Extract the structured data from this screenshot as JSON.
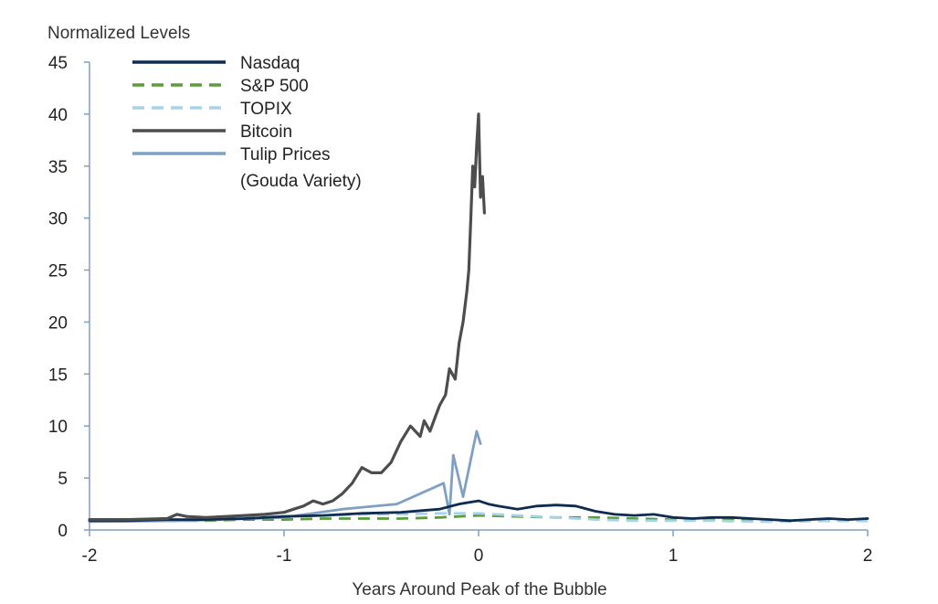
{
  "chart_data": {
    "type": "line",
    "title": "",
    "ylabel": "Normalized Levels",
    "xlabel": "Years Around Peak of the Bubble",
    "xlim": [
      -2,
      2
    ],
    "ylim": [
      0,
      45
    ],
    "x_ticks": [
      "-2",
      "-1",
      "0",
      "1",
      "2"
    ],
    "y_ticks": [
      "0",
      "5",
      "10",
      "15",
      "20",
      "25",
      "30",
      "35",
      "40",
      "45"
    ],
    "grid": false,
    "legend_position": "top-left",
    "legend_lines": [
      "Nasdaq",
      "S&P 500",
      "TOPIX",
      "Bitcoin",
      "Tulip Prices",
      "(Gouda Variety)"
    ],
    "series": [
      {
        "name": "Nasdaq",
        "color": "#0d2c4f",
        "dash": "solid",
        "x": [
          -2.0,
          -1.8,
          -1.6,
          -1.4,
          -1.2,
          -1.0,
          -0.8,
          -0.6,
          -0.4,
          -0.2,
          -0.1,
          0.0,
          0.05,
          0.1,
          0.2,
          0.3,
          0.4,
          0.5,
          0.6,
          0.7,
          0.8,
          0.9,
          1.0,
          1.1,
          1.2,
          1.3,
          1.4,
          1.5,
          1.6,
          1.7,
          1.8,
          1.9,
          2.0
        ],
        "y": [
          0.9,
          0.9,
          1.0,
          1.0,
          1.1,
          1.3,
          1.4,
          1.6,
          1.7,
          2.0,
          2.5,
          2.8,
          2.5,
          2.3,
          2.0,
          2.3,
          2.4,
          2.3,
          1.8,
          1.5,
          1.4,
          1.5,
          1.2,
          1.1,
          1.2,
          1.2,
          1.1,
          1.0,
          0.9,
          1.0,
          1.1,
          1.0,
          1.1
        ]
      },
      {
        "name": "S&P 500",
        "color": "#5a9e3a",
        "dash": "dashed",
        "x": [
          -2.0,
          -1.8,
          -1.6,
          -1.4,
          -1.2,
          -1.0,
          -0.8,
          -0.6,
          -0.4,
          -0.2,
          0.0,
          0.2,
          0.4,
          0.6,
          0.8,
          1.0,
          1.2,
          1.4,
          1.6,
          1.8,
          2.0
        ],
        "y": [
          0.9,
          0.9,
          0.9,
          0.9,
          1.0,
          1.0,
          1.1,
          1.1,
          1.1,
          1.2,
          1.4,
          1.3,
          1.2,
          1.2,
          1.1,
          1.0,
          1.0,
          1.0,
          0.9,
          0.9,
          0.9
        ]
      },
      {
        "name": "TOPIX",
        "color": "#a8d2ea",
        "dash": "dashed",
        "x": [
          -2.0,
          -1.8,
          -1.6,
          -1.4,
          -1.2,
          -1.0,
          -0.8,
          -0.6,
          -0.4,
          -0.2,
          0.0,
          0.2,
          0.4,
          0.6,
          0.8,
          1.0,
          1.2,
          1.4,
          1.6,
          1.8,
          2.0
        ],
        "y": [
          0.9,
          1.0,
          1.0,
          1.1,
          1.2,
          1.3,
          1.4,
          1.5,
          1.5,
          1.6,
          1.6,
          1.4,
          1.2,
          1.0,
          0.9,
          0.9,
          0.9,
          0.8,
          0.8,
          0.9,
          0.9
        ]
      },
      {
        "name": "Bitcoin",
        "color": "#4d4d4d",
        "dash": "solid",
        "x": [
          -2.0,
          -1.8,
          -1.6,
          -1.55,
          -1.5,
          -1.4,
          -1.3,
          -1.2,
          -1.1,
          -1.0,
          -0.95,
          -0.9,
          -0.85,
          -0.8,
          -0.75,
          -0.7,
          -0.65,
          -0.6,
          -0.55,
          -0.5,
          -0.45,
          -0.4,
          -0.35,
          -0.3,
          -0.28,
          -0.25,
          -0.22,
          -0.2,
          -0.17,
          -0.15,
          -0.12,
          -0.1,
          -0.08,
          -0.06,
          -0.05,
          -0.04,
          -0.03,
          -0.02,
          -0.01,
          0.0,
          0.01,
          0.02,
          0.03
        ],
        "y": [
          1.0,
          1.0,
          1.1,
          1.5,
          1.3,
          1.2,
          1.3,
          1.4,
          1.5,
          1.7,
          2.0,
          2.3,
          2.8,
          2.5,
          2.8,
          3.5,
          4.5,
          6.0,
          5.5,
          5.5,
          6.5,
          8.5,
          10.0,
          9.0,
          10.5,
          9.5,
          11.0,
          12.0,
          13.0,
          15.5,
          14.5,
          18.0,
          20.0,
          23.0,
          25.0,
          30.0,
          35.0,
          33.0,
          37.0,
          40.0,
          32.0,
          34.0,
          30.5
        ]
      },
      {
        "name": "Tulip Prices (Gouda Variety)",
        "color": "#7f9fc4",
        "dash": "solid",
        "x": [
          -2.0,
          -1.5,
          -1.0,
          -0.7,
          -0.42,
          -0.18,
          -0.15,
          -0.13,
          -0.08,
          -0.01,
          0.01
        ],
        "y": [
          0.8,
          0.9,
          1.2,
          2.0,
          2.5,
          4.5,
          1.5,
          7.2,
          3.2,
          9.5,
          8.3
        ]
      }
    ]
  }
}
